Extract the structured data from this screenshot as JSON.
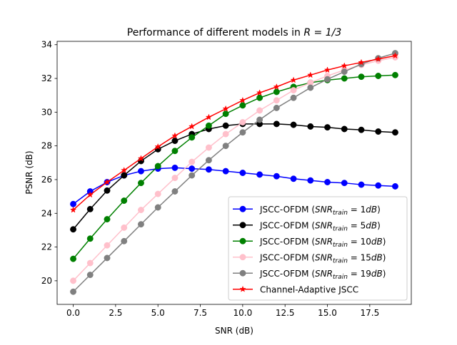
{
  "chart_data": {
    "type": "line",
    "title": {
      "prefix": "Performance of different models in ",
      "math": "R = 1/3"
    },
    "xlabel": "SNR (dB)",
    "ylabel": "PSNR (dB)",
    "xlim": [
      -0.95,
      19.95
    ],
    "ylim": [
      18.6,
      34.2
    ],
    "xticks": [
      0.0,
      2.5,
      5.0,
      7.5,
      10.0,
      12.5,
      15.0,
      17.5
    ],
    "xtick_labels": [
      "0.0",
      "2.5",
      "5.0",
      "7.5",
      "10.0",
      "12.5",
      "15.0",
      "17.5"
    ],
    "yticks": [
      20,
      22,
      24,
      26,
      28,
      30,
      32,
      34
    ],
    "ytick_labels": [
      "20",
      "22",
      "24",
      "26",
      "28",
      "30",
      "32",
      "34"
    ],
    "grid": false,
    "legend_position": "lower-right",
    "x": [
      0,
      1,
      2,
      3,
      4,
      5,
      6,
      7,
      8,
      9,
      10,
      11,
      12,
      13,
      14,
      15,
      16,
      17,
      18,
      19
    ],
    "series": [
      {
        "name": "JSCC-OFDM (SNR_train = 1dB)",
        "legend_prefix": "JSCC-OFDM (",
        "legend_var": "SNR",
        "legend_sub": "train",
        "legend_eq": " = 1",
        "legend_unit": "dB",
        "legend_suffix": ")",
        "color": "#0000ff",
        "marker": "circle",
        "values": [
          24.55,
          25.3,
          25.85,
          26.25,
          26.5,
          26.65,
          26.7,
          26.65,
          26.6,
          26.5,
          26.4,
          26.3,
          26.2,
          26.05,
          25.95,
          25.85,
          25.8,
          25.7,
          25.65,
          25.6
        ]
      },
      {
        "name": "JSCC-OFDM (SNR_train = 5dB)",
        "legend_prefix": "JSCC-OFDM (",
        "legend_var": "SNR",
        "legend_sub": "train",
        "legend_eq": " = 5",
        "legend_unit": "dB",
        "legend_suffix": ")",
        "color": "#000000",
        "marker": "circle",
        "values": [
          23.05,
          24.25,
          25.35,
          26.25,
          27.1,
          27.8,
          28.3,
          28.7,
          29.0,
          29.2,
          29.3,
          29.3,
          29.3,
          29.25,
          29.15,
          29.1,
          29.0,
          28.95,
          28.85,
          28.8
        ]
      },
      {
        "name": "JSCC-OFDM (SNR_train = 10dB)",
        "legend_prefix": "JSCC-OFDM (",
        "legend_var": "SNR",
        "legend_sub": "train",
        "legend_eq": " = 10",
        "legend_unit": "dB",
        "legend_suffix": ")",
        "color": "#008000",
        "marker": "circle",
        "values": [
          21.3,
          22.5,
          23.65,
          24.75,
          25.8,
          26.8,
          27.7,
          28.5,
          29.2,
          29.9,
          30.4,
          30.85,
          31.2,
          31.5,
          31.75,
          31.9,
          32.0,
          32.1,
          32.15,
          32.2
        ]
      },
      {
        "name": "JSCC-OFDM (SNR_train = 15dB)",
        "legend_prefix": "JSCC-OFDM (",
        "legend_var": "SNR",
        "legend_sub": "train",
        "legend_eq": " = 15",
        "legend_unit": "dB",
        "legend_suffix": ")",
        "color": "#ffc0cb",
        "marker": "circle",
        "values": [
          20.0,
          21.05,
          22.1,
          23.15,
          24.2,
          25.15,
          26.1,
          27.05,
          27.9,
          28.7,
          29.4,
          30.1,
          30.7,
          31.3,
          31.75,
          32.15,
          32.5,
          32.8,
          33.05,
          33.25
        ]
      },
      {
        "name": "JSCC-OFDM (SNR_train = 19dB)",
        "legend_prefix": "JSCC-OFDM (",
        "legend_var": "SNR",
        "legend_sub": "train",
        "legend_eq": " = 19",
        "legend_unit": "dB",
        "legend_suffix": ")",
        "color": "#808080",
        "marker": "circle",
        "values": [
          19.35,
          20.35,
          21.35,
          22.35,
          23.35,
          24.35,
          25.3,
          26.25,
          27.15,
          28.0,
          28.8,
          29.55,
          30.25,
          30.85,
          31.45,
          31.95,
          32.4,
          32.85,
          33.2,
          33.5
        ]
      },
      {
        "name": "Channel-Adaptive JSCC",
        "legend_prefix": "Channel-Adaptive JSCC",
        "color": "#ff0000",
        "marker": "star",
        "values": [
          24.2,
          25.1,
          25.85,
          26.55,
          27.25,
          27.95,
          28.6,
          29.15,
          29.7,
          30.2,
          30.7,
          31.15,
          31.5,
          31.9,
          32.2,
          32.5,
          32.75,
          32.95,
          33.15,
          33.35
        ]
      }
    ]
  }
}
